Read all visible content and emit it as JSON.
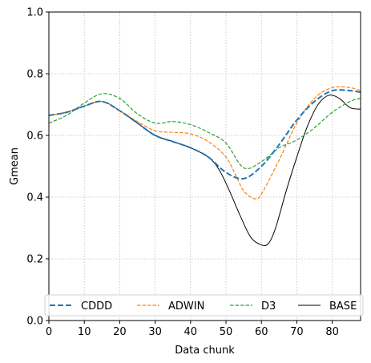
{
  "chart_data": {
    "type": "line",
    "title": "",
    "xlabel": "Data chunk",
    "ylabel": "Gmean",
    "xlim": [
      0,
      88
    ],
    "ylim": [
      0.0,
      1.0
    ],
    "xticks": [
      0,
      10,
      20,
      30,
      40,
      50,
      60,
      70,
      80
    ],
    "yticks": [
      0.0,
      0.2,
      0.4,
      0.6,
      0.8,
      1.0
    ],
    "grid": true,
    "legend_position": "bottom",
    "series": [
      {
        "name": "CDDD",
        "color": "#1f77b4",
        "style": "dashed-thick",
        "x": [
          0,
          5,
          10,
          15,
          20,
          25,
          30,
          35,
          40,
          45,
          50,
          55,
          60,
          65,
          70,
          75,
          80,
          85,
          88
        ],
        "y": [
          0.665,
          0.675,
          0.695,
          0.71,
          0.68,
          0.64,
          0.6,
          0.58,
          0.56,
          0.53,
          0.48,
          0.46,
          0.5,
          0.57,
          0.65,
          0.71,
          0.745,
          0.745,
          0.74
        ]
      },
      {
        "name": "ADWIN",
        "color": "#ff7f0e",
        "style": "dashed",
        "x": [
          0,
          5,
          10,
          15,
          20,
          25,
          30,
          35,
          40,
          45,
          50,
          53,
          55,
          58,
          60,
          65,
          70,
          75,
          80,
          85,
          88
        ],
        "y": [
          0.665,
          0.675,
          0.695,
          0.71,
          0.68,
          0.645,
          0.615,
          0.61,
          0.605,
          0.58,
          0.53,
          0.465,
          0.42,
          0.395,
          0.41,
          0.52,
          0.64,
          0.72,
          0.755,
          0.755,
          0.745
        ]
      },
      {
        "name": "D3",
        "color": "#2ca02c",
        "style": "dashed",
        "x": [
          0,
          5,
          10,
          15,
          20,
          25,
          30,
          35,
          40,
          45,
          50,
          55,
          60,
          65,
          70,
          75,
          80,
          85,
          88
        ],
        "y": [
          0.64,
          0.665,
          0.705,
          0.735,
          0.72,
          0.67,
          0.64,
          0.645,
          0.635,
          0.61,
          0.575,
          0.495,
          0.515,
          0.56,
          0.585,
          0.625,
          0.675,
          0.71,
          0.72
        ]
      },
      {
        "name": "BASE",
        "color": "#000000",
        "style": "solid",
        "x": [
          0,
          5,
          10,
          15,
          20,
          25,
          30,
          35,
          40,
          45,
          48,
          51,
          54,
          57,
          60,
          62,
          64,
          67,
          70,
          73,
          76,
          79,
          82,
          85,
          88
        ],
        "y": [
          0.665,
          0.675,
          0.695,
          0.71,
          0.68,
          0.64,
          0.6,
          0.58,
          0.56,
          0.53,
          0.49,
          0.42,
          0.34,
          0.27,
          0.245,
          0.25,
          0.3,
          0.42,
          0.53,
          0.63,
          0.7,
          0.73,
          0.72,
          0.69,
          0.685
        ]
      }
    ]
  }
}
